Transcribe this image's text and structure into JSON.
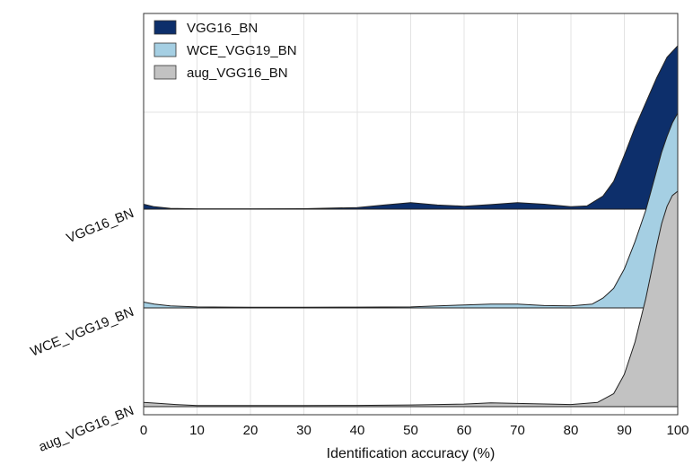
{
  "chart_data": {
    "type": "area",
    "subtype": "ridgeline-density",
    "title": "",
    "xlabel": "Identification accuracy (%)",
    "ylabel": "",
    "xlim": [
      0,
      100
    ],
    "xticks": [
      0,
      10,
      20,
      30,
      40,
      50,
      60,
      70,
      80,
      90,
      100
    ],
    "grid": "vertical",
    "legend_position": "top-left",
    "categories": [
      "VGG16_BN",
      "WCE_VGG19_BN",
      "aug_VGG16_BN"
    ],
    "series": [
      {
        "name": "VGG16_BN",
        "color": "#0d2f6b",
        "x": [
          0,
          2,
          5,
          10,
          20,
          30,
          40,
          45,
          50,
          55,
          60,
          65,
          70,
          75,
          80,
          83,
          86,
          88,
          90,
          92,
          94,
          96,
          98,
          100
        ],
        "density": [
          0.03,
          0.015,
          0.005,
          0.002,
          0.002,
          0.003,
          0.01,
          0.025,
          0.04,
          0.025,
          0.018,
          0.028,
          0.04,
          0.03,
          0.015,
          0.02,
          0.08,
          0.17,
          0.33,
          0.5,
          0.65,
          0.8,
          0.93,
          1.0
        ]
      },
      {
        "name": "WCE_VGG19_BN",
        "color": "#a5cfe3",
        "x": [
          0,
          2,
          5,
          10,
          20,
          30,
          40,
          50,
          55,
          60,
          65,
          70,
          75,
          80,
          84,
          86,
          88,
          90,
          92,
          94,
          95,
          96,
          97,
          98,
          99,
          100
        ],
        "density": [
          0.03,
          0.02,
          0.01,
          0.005,
          0.003,
          0.003,
          0.004,
          0.005,
          0.01,
          0.015,
          0.02,
          0.02,
          0.012,
          0.01,
          0.02,
          0.05,
          0.1,
          0.2,
          0.34,
          0.5,
          0.6,
          0.7,
          0.8,
          0.88,
          0.95,
          1.0
        ]
      },
      {
        "name": "aug_VGG16_BN",
        "color": "#c2c2c2",
        "x": [
          0,
          3,
          6,
          10,
          20,
          30,
          40,
          50,
          55,
          60,
          65,
          70,
          80,
          85,
          88,
          90,
          92,
          94,
          95,
          96,
          97,
          98,
          99,
          100
        ],
        "density": [
          0.02,
          0.015,
          0.01,
          0.005,
          0.005,
          0.005,
          0.006,
          0.008,
          0.01,
          0.012,
          0.018,
          0.015,
          0.01,
          0.02,
          0.06,
          0.15,
          0.3,
          0.5,
          0.62,
          0.74,
          0.85,
          0.93,
          0.98,
          1.0
        ]
      }
    ]
  }
}
